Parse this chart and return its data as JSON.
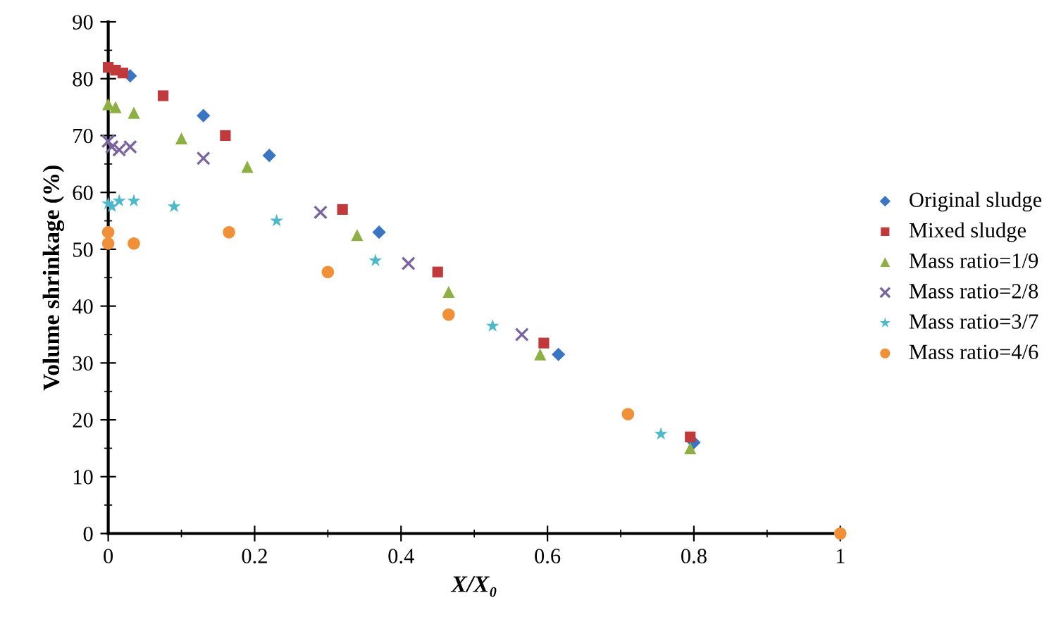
{
  "chart_data": {
    "type": "scatter",
    "xlabel": "X/X₀",
    "ylabel": "Volume shrinkage (%)",
    "xlim": [
      0,
      1
    ],
    "xticks": [
      0,
      0.2,
      0.4,
      0.6,
      0.8,
      1
    ],
    "ylim": [
      0,
      90
    ],
    "yticks": [
      0,
      10,
      20,
      30,
      40,
      50,
      60,
      70,
      80,
      90
    ],
    "grid": false,
    "legend": "right",
    "series": [
      {
        "name": "Original sludge",
        "color": "#3a75c4",
        "marker": "diamond",
        "x": [
          0.03,
          0.13,
          0.22,
          0.37,
          0.615,
          0.8
        ],
        "values": [
          80.5,
          73.5,
          66.5,
          53,
          31.5,
          16
        ]
      },
      {
        "name": "Mixed sludge",
        "color": "#c0393b",
        "marker": "square",
        "x": [
          0,
          0.01,
          0.02,
          0.075,
          0.16,
          0.32,
          0.45,
          0.595,
          0.795
        ],
        "values": [
          82,
          81.5,
          81,
          77,
          70,
          57,
          46,
          33.5,
          17
        ]
      },
      {
        "name": "Mass ratio=1/9",
        "color": "#8db043",
        "marker": "triangle",
        "x": [
          0,
          0.01,
          0.035,
          0.1,
          0.19,
          0.34,
          0.465,
          0.59,
          0.795
        ],
        "values": [
          75.5,
          75,
          74,
          69.5,
          64.5,
          52.5,
          42.5,
          31.5,
          15
        ]
      },
      {
        "name": "Mass ratio=2/8",
        "color": "#7a64a0",
        "marker": "cross",
        "x": [
          0,
          0.005,
          0.015,
          0.03,
          0.13,
          0.29,
          0.41,
          0.565
        ],
        "values": [
          69,
          68,
          67.5,
          68,
          66,
          56.5,
          47.5,
          35
        ]
      },
      {
        "name": "Mass ratio=3/7",
        "color": "#4bb8cc",
        "marker": "star",
        "x": [
          0,
          0.005,
          0.015,
          0.035,
          0.09,
          0.23,
          0.365,
          0.525,
          0.755
        ],
        "values": [
          58,
          57.5,
          58.5,
          58.5,
          57.5,
          55,
          48,
          36.5,
          17.5
        ]
      },
      {
        "name": "Mass ratio=4/6",
        "color": "#f0913a",
        "marker": "circle",
        "x": [
          0,
          0,
          0.035,
          0.165,
          0.3,
          0.465,
          0.71,
          1
        ],
        "values": [
          53,
          51,
          51,
          53,
          46,
          38.5,
          21,
          0
        ]
      }
    ]
  }
}
